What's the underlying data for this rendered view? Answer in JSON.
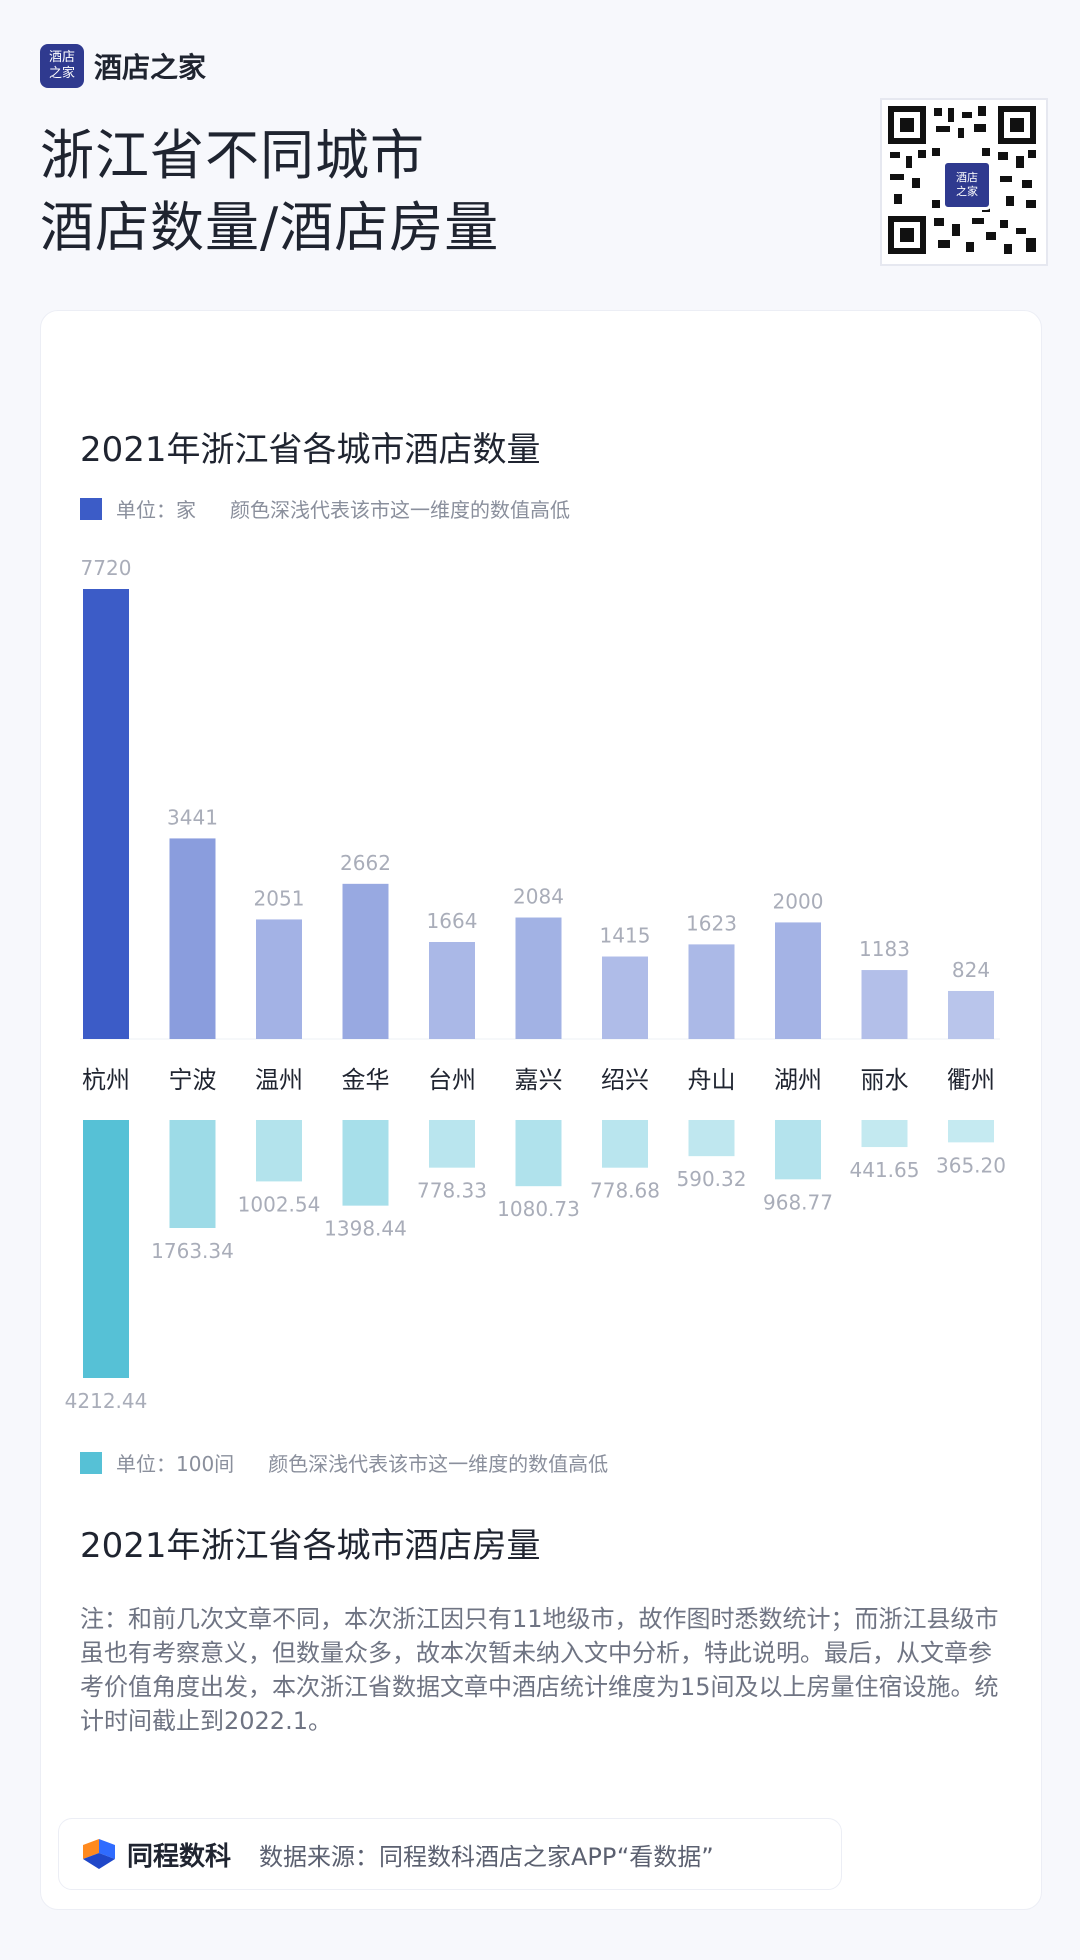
{
  "header": {
    "logo_badge_line1": "酒店",
    "logo_badge_line2": "之家",
    "logo_text": "酒店之家",
    "title_line1": "浙江省不同城市",
    "title_line2": "酒店数量/酒店房量",
    "qr_badge_line1": "酒店",
    "qr_badge_line2": "之家"
  },
  "section1": {
    "title": "2021年浙江省各城市酒店数量",
    "unit": "单位：家",
    "legend_note": "颜色深浅代表该市这一维度的数值高低",
    "color": "#3c5cc7"
  },
  "section2": {
    "title": "2021年浙江省各城市酒店房量",
    "unit": "单位：100间",
    "legend_note": "颜色深浅代表该市这一维度的数值高低",
    "color": "#56c1d6"
  },
  "chart_data": [
    {
      "type": "bar",
      "title": "2021年浙江省各城市酒店数量",
      "categories": [
        "杭州",
        "宁波",
        "温州",
        "金华",
        "台州",
        "嘉兴",
        "绍兴",
        "舟山",
        "湖州",
        "丽水",
        "衢州"
      ],
      "series": [
        {
          "name": "单位：家",
          "values": [
            7720,
            3441,
            2051,
            2662,
            1664,
            2084,
            1415,
            1623,
            2000,
            1183,
            824
          ],
          "labels": [
            "7720",
            "3441",
            "2051",
            "2662",
            "1664",
            "2084",
            "1415",
            "1623",
            "2000",
            "1183",
            "824"
          ]
        }
      ],
      "ylim": [
        0,
        7720
      ],
      "orientation": "up",
      "grid": false
    },
    {
      "type": "bar",
      "title": "2021年浙江省各城市酒店房量",
      "categories": [
        "杭州",
        "宁波",
        "温州",
        "金华",
        "台州",
        "嘉兴",
        "绍兴",
        "舟山",
        "湖州",
        "丽水",
        "衢州"
      ],
      "series": [
        {
          "name": "单位：100间",
          "values": [
            4212.44,
            1763.34,
            1002.54,
            1398.44,
            778.33,
            1080.73,
            778.68,
            590.32,
            968.77,
            441.65,
            365.2
          ],
          "labels": [
            "4212.44",
            "1763.34",
            "1002.54",
            "1398.44",
            "778.33",
            "1080.73",
            "778.68",
            "590.32",
            "968.77",
            "441.65",
            "365.20"
          ]
        }
      ],
      "ylim": [
        0,
        4212.44
      ],
      "orientation": "down",
      "grid": false
    }
  ],
  "note": "注：和前几次文章不同，本次浙江因只有11地级市，故作图时悉数统计；而浙江县级市虽也有考察意义，但数量众多，故本次暂未纳入文中分析，特此说明。最后，从文章参考价值角度出发，本次浙江省数据文章中酒店统计维度为15间及以上房量住宿设施。统计时间截止到2022.1。",
  "footer": {
    "brand": "同程数科",
    "source": "数据来源：同程数科酒店之家APP“看数据”"
  }
}
